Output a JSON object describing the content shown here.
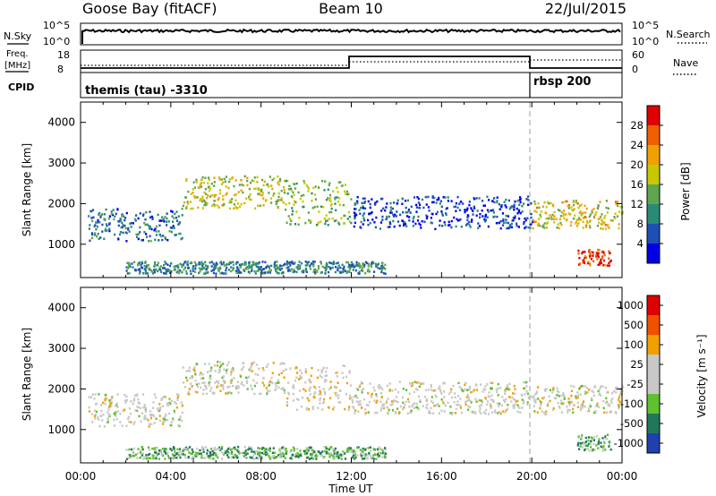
{
  "header": {
    "station": "Goose Bay (fitACF)",
    "beam": "Beam 10",
    "date": "22/Jul/2015"
  },
  "nsky": {
    "label": "N.Sky",
    "tick_top": "10^5",
    "tick_bottom": "10^0",
    "right_label": "N.Search",
    "right_tick_top": "10^5",
    "right_tick_bottom": "10^0"
  },
  "freq": {
    "label_line1": "Freq.",
    "label_line2": "[MHz]",
    "tick_top": "18",
    "tick_bottom": "8",
    "right_label": "Nave",
    "right_tick_top": "60",
    "right_tick_bottom": "0"
  },
  "cpid": {
    "label": "CPID",
    "programs": [
      {
        "name": "themis (tau) -3310",
        "start_hour": 0
      },
      {
        "name": "rbsp 200",
        "start_hour": 20
      }
    ]
  },
  "time_axis": {
    "label": "Time UT",
    "ticks": [
      "00:00",
      "04:00",
      "08:00",
      "12:00",
      "16:00",
      "20:00",
      "00:00"
    ]
  },
  "colors": {
    "power_scale": [
      "#0000e6",
      "#1e4fb4",
      "#2a8a78",
      "#5fa64f",
      "#c8c800",
      "#f0a000",
      "#f06000",
      "#e00000"
    ],
    "velocity_scale": [
      "#e00000",
      "#f05000",
      "#f0a000",
      "#c8c8c8",
      "#c8c8c8",
      "#60c030",
      "#207858",
      "#2040b0"
    ]
  },
  "chart_data": [
    {
      "type": "heatmap",
      "panel": "power",
      "ylabel": "Slant Range [km]",
      "ylim": [
        180,
        4500
      ],
      "yticks": [
        1000,
        2000,
        3000,
        4000
      ],
      "xlabel": "Time UT",
      "xlim_hours": [
        0,
        24
      ],
      "colorbar": {
        "label": "Power [dB]",
        "ticks": [
          "4",
          "8",
          "12",
          "16",
          "20",
          "24",
          "28"
        ]
      },
      "scatter_bands": [
        {
          "t0": 0.3,
          "t1": 4.5,
          "r0": 1100,
          "r1": 1900,
          "level": 0.25
        },
        {
          "t0": 4.5,
          "t1": 9.0,
          "r0": 1900,
          "r1": 2700,
          "level": 0.55
        },
        {
          "t0": 9.0,
          "t1": 12.0,
          "r0": 1500,
          "r1": 2600,
          "level": 0.45
        },
        {
          "t0": 12.0,
          "t1": 20.0,
          "r0": 1400,
          "r1": 2200,
          "level": 0.15
        },
        {
          "t0": 20.0,
          "t1": 24.0,
          "r0": 1400,
          "r1": 2100,
          "level": 0.6
        },
        {
          "t0": 22.0,
          "t1": 23.5,
          "r0": 500,
          "r1": 900,
          "level": 0.9
        },
        {
          "t0": 2.0,
          "t1": 13.5,
          "r0": 300,
          "r1": 600,
          "level": 0.3
        }
      ]
    },
    {
      "type": "heatmap",
      "panel": "velocity",
      "ylabel": "Slant Range [km]",
      "ylim": [
        180,
        4500
      ],
      "yticks": [
        1000,
        2000,
        3000,
        4000
      ],
      "xlabel": "Time UT",
      "xlim_hours": [
        0,
        24
      ],
      "colorbar": {
        "label": "Velocity [m s⁻¹]",
        "ticks": [
          "1000",
          "500",
          "100",
          "25",
          "-25",
          "-100",
          "-500",
          "-1000"
        ]
      },
      "scatter_bands": [
        {
          "t0": 0.3,
          "t1": 4.5,
          "r0": 1100,
          "r1": 1900,
          "level": 0.5
        },
        {
          "t0": 4.5,
          "t1": 9.0,
          "r0": 1900,
          "r1": 2700,
          "level": 0.5
        },
        {
          "t0": 9.0,
          "t1": 12.0,
          "r0": 1500,
          "r1": 2600,
          "level": 0.45
        },
        {
          "t0": 12.0,
          "t1": 20.0,
          "r0": 1400,
          "r1": 2200,
          "level": 0.5
        },
        {
          "t0": 20.0,
          "t1": 24.0,
          "r0": 1400,
          "r1": 2100,
          "level": 0.5
        },
        {
          "t0": 22.0,
          "t1": 23.5,
          "r0": 500,
          "r1": 900,
          "level": 0.7
        },
        {
          "t0": 2.0,
          "t1": 13.5,
          "r0": 300,
          "r1": 600,
          "level": 0.7
        }
      ]
    }
  ]
}
